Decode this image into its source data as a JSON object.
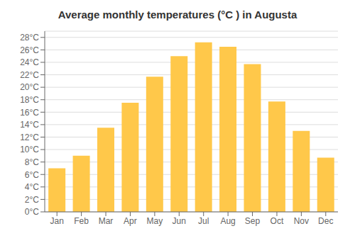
{
  "chart_data": {
    "type": "bar",
    "title": "Average monthly temperatures (°C ) in Augusta",
    "categories": [
      "Jan",
      "Feb",
      "Mar",
      "Apr",
      "May",
      "Jun",
      "Jul",
      "Aug",
      "Sep",
      "Oct",
      "Nov",
      "Dec"
    ],
    "values": [
      7.0,
      9.0,
      13.5,
      17.5,
      21.7,
      25.0,
      27.2,
      26.5,
      23.7,
      17.7,
      13.0,
      8.7
    ],
    "color": "#FFC84A",
    "ylim": [
      0,
      29
    ],
    "yticks": [
      {
        "value": 0,
        "label": "0°C"
      },
      {
        "value": 2,
        "label": "2°C"
      },
      {
        "value": 4,
        "label": "4°C"
      },
      {
        "value": 6,
        "label": "6°C"
      },
      {
        "value": 8,
        "label": "8°C"
      },
      {
        "value": 10,
        "label": "10°C"
      },
      {
        "value": 12,
        "label": "12°C"
      },
      {
        "value": 14,
        "label": "14°C"
      },
      {
        "value": 16,
        "label": "16°C"
      },
      {
        "value": 18,
        "label": "18°C"
      },
      {
        "value": 20,
        "label": "20°C"
      },
      {
        "value": 22,
        "label": "22°C"
      },
      {
        "value": 24,
        "label": "24°C"
      },
      {
        "value": 26,
        "label": "26°C"
      },
      {
        "value": 28,
        "label": "28°C"
      }
    ],
    "grid": true
  }
}
